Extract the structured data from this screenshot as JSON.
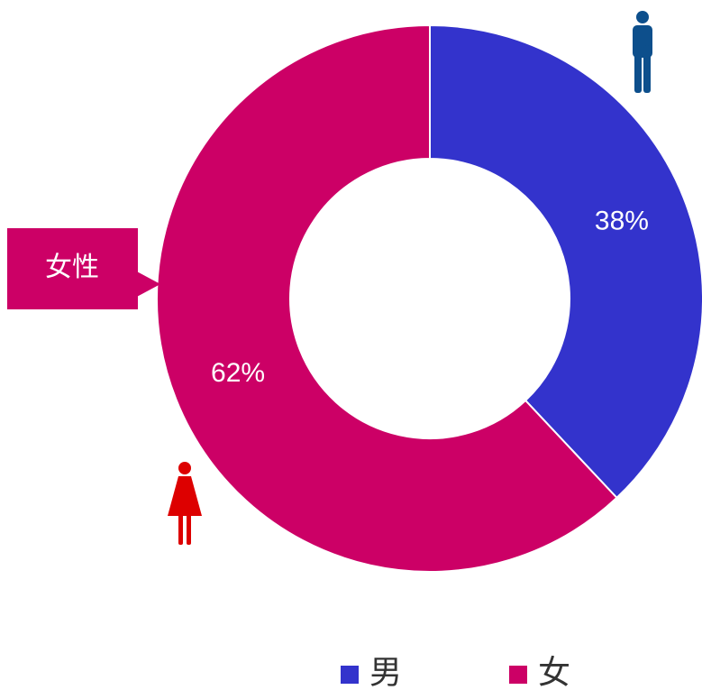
{
  "chart_data": {
    "type": "pie",
    "categories": [
      "男",
      "女"
    ],
    "values": [
      38,
      62
    ],
    "value_labels": [
      "38%",
      "62%"
    ],
    "colors": [
      "#3333cc",
      "#cc0066"
    ],
    "annotation": "女性",
    "legend": "bottom"
  }
}
